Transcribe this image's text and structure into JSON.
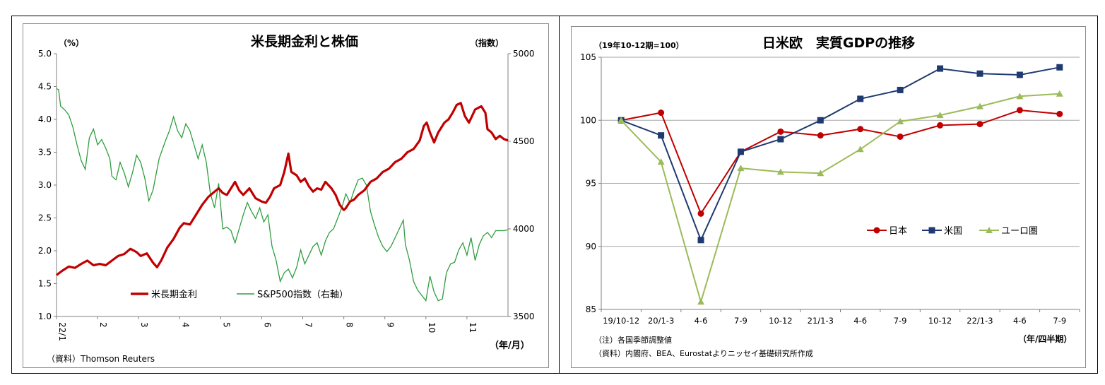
{
  "chart_data": [
    {
      "type": "line",
      "title": "米長期金利と株価",
      "y_unit_left": "（%）",
      "y_unit_right": "（指数）",
      "x_unit": "（年/月）",
      "source": "（資料）Thomson Reuters",
      "ylim_left": [
        1.0,
        5.0
      ],
      "ylim_right": [
        3500,
        5000
      ],
      "yticks_left": [
        "1.0",
        "1.5",
        "2.0",
        "2.5",
        "3.0",
        "3.5",
        "4.0",
        "4.5",
        "5.0"
      ],
      "yticks_right": [
        "3500",
        "4000",
        "4500",
        "5000"
      ],
      "xticks": [
        "22/1",
        "2",
        "3",
        "4",
        "5",
        "6",
        "7",
        "8",
        "9",
        "10",
        "11"
      ],
      "x_month_range": [
        0,
        11
      ],
      "grid": false,
      "legend": "bottom-left",
      "series": [
        {
          "name": "米長期金利",
          "axis": "left",
          "color": "#c00000",
          "points": [
            [
              0.0,
              1.63
            ],
            [
              0.15,
              1.7
            ],
            [
              0.3,
              1.76
            ],
            [
              0.45,
              1.74
            ],
            [
              0.6,
              1.8
            ],
            [
              0.75,
              1.85
            ],
            [
              0.9,
              1.78
            ],
            [
              1.05,
              1.8
            ],
            [
              1.2,
              1.78
            ],
            [
              1.35,
              1.85
            ],
            [
              1.5,
              1.92
            ],
            [
              1.65,
              1.95
            ],
            [
              1.8,
              2.03
            ],
            [
              1.95,
              1.98
            ],
            [
              2.05,
              1.92
            ],
            [
              2.2,
              1.96
            ],
            [
              2.35,
              1.82
            ],
            [
              2.45,
              1.75
            ],
            [
              2.55,
              1.85
            ],
            [
              2.7,
              2.05
            ],
            [
              2.85,
              2.18
            ],
            [
              3.0,
              2.35
            ],
            [
              3.1,
              2.42
            ],
            [
              3.25,
              2.4
            ],
            [
              3.4,
              2.55
            ],
            [
              3.55,
              2.7
            ],
            [
              3.7,
              2.82
            ],
            [
              3.85,
              2.9
            ],
            [
              3.95,
              2.95
            ],
            [
              4.05,
              2.88
            ],
            [
              4.15,
              2.85
            ],
            [
              4.25,
              2.95
            ],
            [
              4.35,
              3.05
            ],
            [
              4.45,
              2.92
            ],
            [
              4.55,
              2.85
            ],
            [
              4.7,
              2.95
            ],
            [
              4.85,
              2.8
            ],
            [
              5.0,
              2.75
            ],
            [
              5.1,
              2.73
            ],
            [
              5.2,
              2.82
            ],
            [
              5.3,
              2.95
            ],
            [
              5.45,
              3.0
            ],
            [
              5.55,
              3.2
            ],
            [
              5.65,
              3.48
            ],
            [
              5.72,
              3.2
            ],
            [
              5.85,
              3.15
            ],
            [
              5.95,
              3.05
            ],
            [
              6.05,
              3.1
            ],
            [
              6.15,
              2.98
            ],
            [
              6.25,
              2.9
            ],
            [
              6.35,
              2.95
            ],
            [
              6.45,
              2.93
            ],
            [
              6.55,
              3.05
            ],
            [
              6.7,
              2.95
            ],
            [
              6.8,
              2.85
            ],
            [
              6.9,
              2.7
            ],
            [
              7.0,
              2.62
            ],
            [
              7.05,
              2.65
            ],
            [
              7.15,
              2.75
            ],
            [
              7.25,
              2.78
            ],
            [
              7.35,
              2.85
            ],
            [
              7.5,
              2.92
            ],
            [
              7.65,
              3.05
            ],
            [
              7.8,
              3.1
            ],
            [
              7.95,
              3.2
            ],
            [
              8.1,
              3.25
            ],
            [
              8.25,
              3.35
            ],
            [
              8.4,
              3.4
            ],
            [
              8.55,
              3.5
            ],
            [
              8.7,
              3.55
            ],
            [
              8.85,
              3.68
            ],
            [
              8.95,
              3.9
            ],
            [
              9.02,
              3.95
            ],
            [
              9.1,
              3.8
            ],
            [
              9.2,
              3.65
            ],
            [
              9.3,
              3.8
            ],
            [
              9.45,
              3.95
            ],
            [
              9.55,
              4.0
            ],
            [
              9.65,
              4.1
            ],
            [
              9.75,
              4.22
            ],
            [
              9.85,
              4.25
            ],
            [
              9.95,
              4.05
            ],
            [
              10.05,
              3.95
            ],
            [
              10.2,
              4.15
            ],
            [
              10.35,
              4.2
            ],
            [
              10.45,
              4.1
            ],
            [
              10.5,
              3.85
            ],
            [
              10.6,
              3.8
            ],
            [
              10.7,
              3.7
            ],
            [
              10.8,
              3.75
            ],
            [
              10.9,
              3.7
            ],
            [
              11.0,
              3.68
            ]
          ]
        },
        {
          "name": "S&P500指数（右軸）",
          "axis": "right",
          "color": "#2e9e3e",
          "points": [
            [
              0.0,
              4800
            ],
            [
              0.05,
              4795
            ],
            [
              0.1,
              4700
            ],
            [
              0.2,
              4680
            ],
            [
              0.3,
              4650
            ],
            [
              0.4,
              4580
            ],
            [
              0.5,
              4480
            ],
            [
              0.6,
              4390
            ],
            [
              0.7,
              4340
            ],
            [
              0.8,
              4520
            ],
            [
              0.9,
              4570
            ],
            [
              1.0,
              4480
            ],
            [
              1.1,
              4510
            ],
            [
              1.2,
              4460
            ],
            [
              1.3,
              4400
            ],
            [
              1.35,
              4300
            ],
            [
              1.45,
              4280
            ],
            [
              1.55,
              4380
            ],
            [
              1.65,
              4320
            ],
            [
              1.75,
              4240
            ],
            [
              1.85,
              4320
            ],
            [
              1.95,
              4420
            ],
            [
              2.05,
              4380
            ],
            [
              2.15,
              4290
            ],
            [
              2.25,
              4160
            ],
            [
              2.35,
              4220
            ],
            [
              2.5,
              4400
            ],
            [
              2.65,
              4500
            ],
            [
              2.75,
              4560
            ],
            [
              2.85,
              4640
            ],
            [
              2.95,
              4560
            ],
            [
              3.05,
              4520
            ],
            [
              3.15,
              4600
            ],
            [
              3.25,
              4560
            ],
            [
              3.35,
              4480
            ],
            [
              3.45,
              4400
            ],
            [
              3.55,
              4480
            ],
            [
              3.65,
              4380
            ],
            [
              3.75,
              4200
            ],
            [
              3.85,
              4120
            ],
            [
              3.95,
              4260
            ],
            [
              4.05,
              4000
            ],
            [
              4.15,
              4010
            ],
            [
              4.25,
              3990
            ],
            [
              4.35,
              3920
            ],
            [
              4.45,
              4000
            ],
            [
              4.55,
              4080
            ],
            [
              4.65,
              4150
            ],
            [
              4.75,
              4100
            ],
            [
              4.85,
              4060
            ],
            [
              4.95,
              4120
            ],
            [
              5.05,
              4040
            ],
            [
              5.15,
              4080
            ],
            [
              5.25,
              3900
            ],
            [
              5.35,
              3820
            ],
            [
              5.45,
              3700
            ],
            [
              5.55,
              3750
            ],
            [
              5.65,
              3770
            ],
            [
              5.75,
              3720
            ],
            [
              5.85,
              3780
            ],
            [
              5.95,
              3880
            ],
            [
              6.05,
              3800
            ],
            [
              6.15,
              3850
            ],
            [
              6.25,
              3900
            ],
            [
              6.35,
              3920
            ],
            [
              6.45,
              3850
            ],
            [
              6.55,
              3930
            ],
            [
              6.65,
              3980
            ],
            [
              6.75,
              4000
            ],
            [
              6.85,
              4060
            ],
            [
              6.95,
              4120
            ],
            [
              7.05,
              4200
            ],
            [
              7.15,
              4150
            ],
            [
              7.25,
              4220
            ],
            [
              7.35,
              4280
            ],
            [
              7.45,
              4290
            ],
            [
              7.55,
              4250
            ],
            [
              7.65,
              4100
            ],
            [
              7.75,
              4020
            ],
            [
              7.85,
              3950
            ],
            [
              7.95,
              3900
            ],
            [
              8.05,
              3870
            ],
            [
              8.15,
              3900
            ],
            [
              8.25,
              3950
            ],
            [
              8.35,
              4000
            ],
            [
              8.45,
              4050
            ],
            [
              8.5,
              3910
            ],
            [
              8.6,
              3820
            ],
            [
              8.7,
              3700
            ],
            [
              8.8,
              3650
            ],
            [
              8.9,
              3620
            ],
            [
              9.0,
              3590
            ],
            [
              9.1,
              3730
            ],
            [
              9.2,
              3640
            ],
            [
              9.3,
              3590
            ],
            [
              9.4,
              3600
            ],
            [
              9.5,
              3750
            ],
            [
              9.6,
              3800
            ],
            [
              9.7,
              3810
            ],
            [
              9.8,
              3880
            ],
            [
              9.9,
              3920
            ],
            [
              10.0,
              3850
            ],
            [
              10.1,
              3950
            ],
            [
              10.2,
              3820
            ],
            [
              10.3,
              3910
            ],
            [
              10.4,
              3960
            ],
            [
              10.5,
              3980
            ],
            [
              10.6,
              3950
            ],
            [
              10.7,
              3990
            ],
            [
              10.8,
              3990
            ],
            [
              10.9,
              3990
            ],
            [
              11.0,
              3995
            ]
          ]
        }
      ]
    },
    {
      "type": "line",
      "title": "日米欧　実質GDPの推移",
      "y_unit": "（19年10-12期=100）",
      "x_unit": "（年/四半期）",
      "notes": [
        "（注）各国季節調整値",
        "（資料）内閣府、BEA、Eurostatよりニッセイ基礎研究所作成"
      ],
      "ylim": [
        85,
        105
      ],
      "yticks": [
        "85",
        "90",
        "95",
        "100",
        "105"
      ],
      "categories": [
        "19/10-12",
        "20/1-3",
        "4-6",
        "7-9",
        "10-12",
        "21/1-3",
        "4-6",
        "7-9",
        "10-12",
        "22/1-3",
        "4-6",
        "7-9"
      ],
      "grid": true,
      "legend": "right",
      "series": [
        {
          "name": "日本",
          "color": "#c00000",
          "marker": "circle",
          "values": [
            100.0,
            100.6,
            92.6,
            97.5,
            99.1,
            98.8,
            99.3,
            98.7,
            99.6,
            99.7,
            100.8,
            100.5
          ]
        },
        {
          "name": "米国",
          "color": "#1f3a70",
          "marker": "square",
          "values": [
            100.0,
            98.8,
            90.5,
            97.5,
            98.5,
            100.0,
            101.7,
            102.4,
            104.1,
            103.7,
            103.6,
            104.2
          ]
        },
        {
          "name": "ユーロ圏",
          "color": "#9bbb59",
          "marker": "triangle",
          "values": [
            100.0,
            96.7,
            85.6,
            96.2,
            95.9,
            95.8,
            97.7,
            99.9,
            100.4,
            101.1,
            101.9,
            102.1
          ]
        }
      ]
    }
  ]
}
